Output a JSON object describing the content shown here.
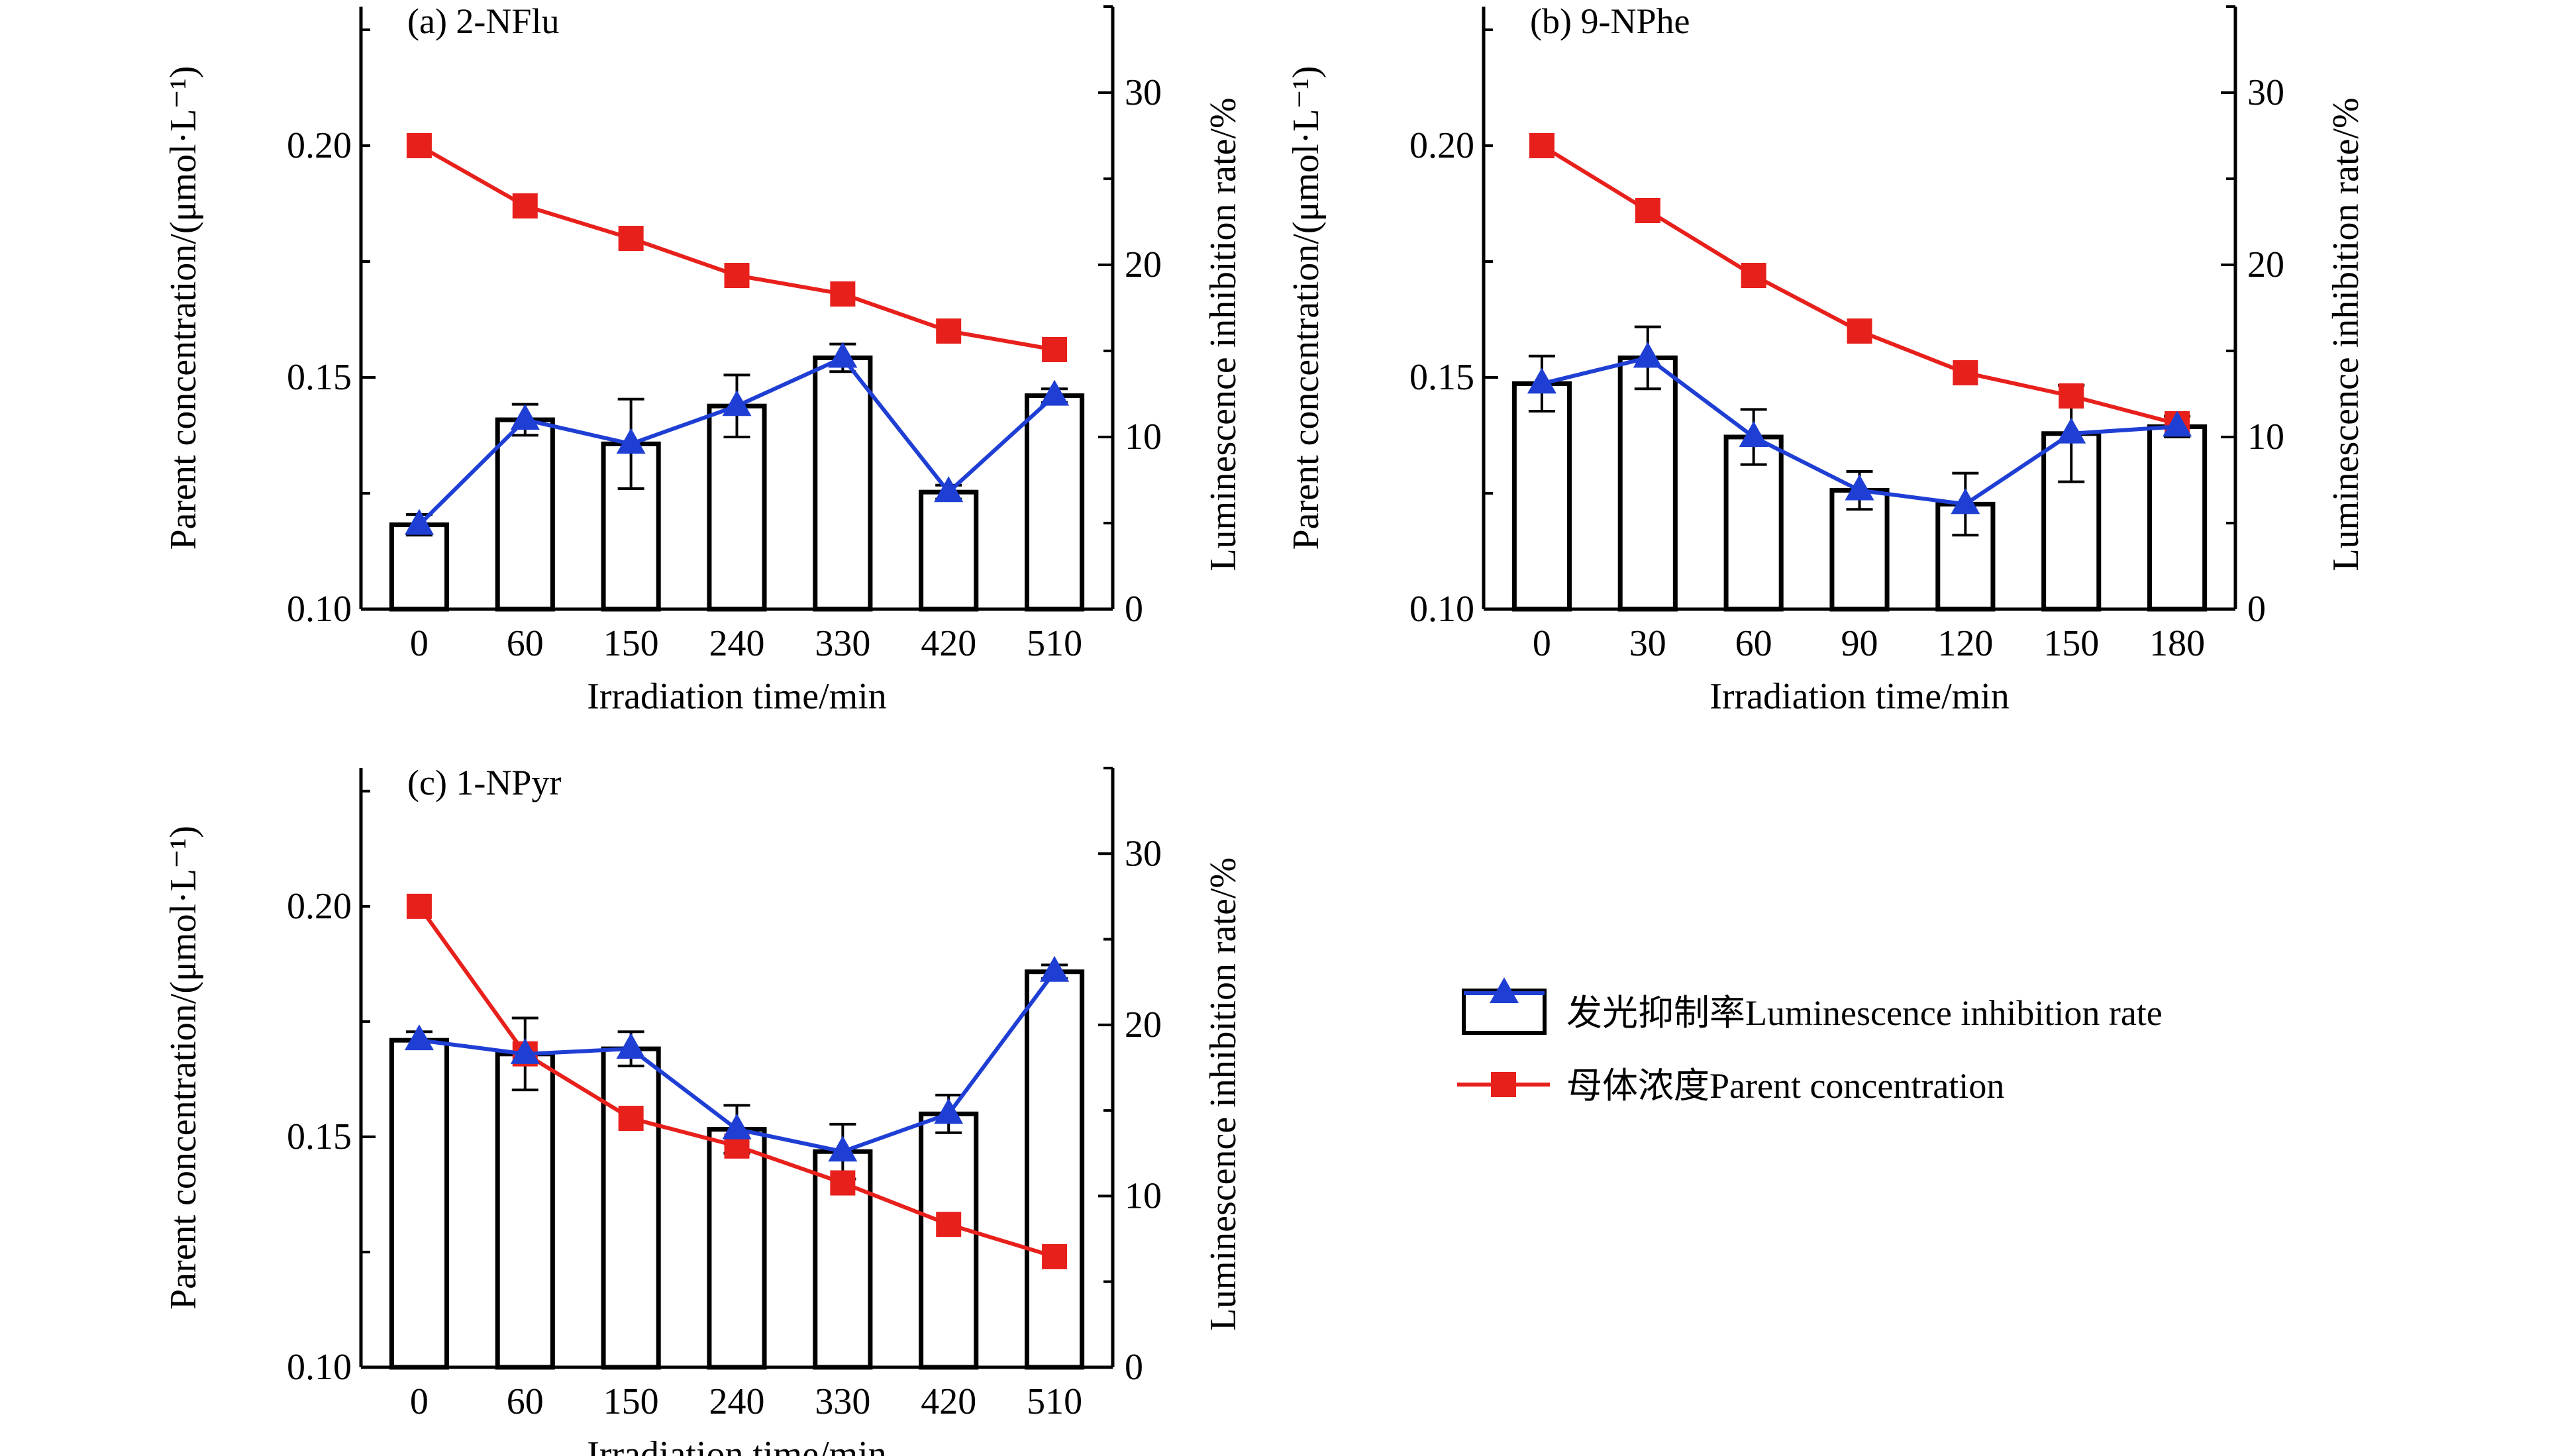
{
  "colors": {
    "inhibition": "#1f3fd4",
    "concentration": "#e8201c",
    "bar_fill": "#ffffff",
    "axis": "#000000"
  },
  "legend": {
    "inhibition_label": "发光抑制率Luminescence inhibition rate",
    "concentration_label": "母体浓度Parent concentration"
  },
  "chart_data": [
    {
      "type": "bar",
      "title": "(a) 2-NFlu",
      "xlabel": "Irradiation time/min",
      "ylabel_left": "Parent concentration/(μmol·L⁻¹)",
      "ylabel_right": "Luminescence inhibition rate/%",
      "categories": [
        "0",
        "60",
        "150",
        "240",
        "330",
        "420",
        "510"
      ],
      "ylim_left": [
        0.1,
        0.23
      ],
      "yticks_left": [
        "0.10",
        "0.15",
        "0.20"
      ],
      "ylim_right": [
        0,
        35
      ],
      "yticks_right": [
        "0",
        "10",
        "20",
        "30"
      ],
      "series": [
        {
          "name": "发光抑制率Luminescence inhibition rate",
          "axis": "right",
          "style": "bar+line",
          "values": [
            4.9,
            11.0,
            9.6,
            11.8,
            14.6,
            6.8,
            12.4
          ],
          "errors": [
            0.6,
            0.9,
            2.6,
            1.8,
            0.8,
            0.4,
            0.4
          ]
        },
        {
          "name": "母体浓度Parent concentration",
          "axis": "left",
          "style": "line",
          "values": [
            0.2,
            0.187,
            0.18,
            0.172,
            0.168,
            0.16,
            0.156
          ]
        }
      ]
    },
    {
      "type": "bar",
      "title": "(b) 9-NPhe",
      "xlabel": "Irradiation time/min",
      "ylabel_left": "Parent concentration/(μmol·L⁻¹)",
      "ylabel_right": "Luminescence inhibition rate/%",
      "categories": [
        "0",
        "30",
        "60",
        "90",
        "120",
        "150",
        "180"
      ],
      "ylim_left": [
        0.1,
        0.23
      ],
      "yticks_left": [
        "0.10",
        "0.15",
        "0.20"
      ],
      "ylim_right": [
        0,
        35
      ],
      "yticks_right": [
        "0",
        "10",
        "20",
        "30"
      ],
      "series": [
        {
          "name": "发光抑制率Luminescence inhibition rate",
          "axis": "right",
          "style": "bar+line",
          "values": [
            13.1,
            14.6,
            10.0,
            6.9,
            6.1,
            10.2,
            10.6
          ],
          "errors": [
            1.6,
            1.8,
            1.6,
            1.1,
            1.8,
            2.8,
            0.6
          ]
        },
        {
          "name": "母体浓度Parent concentration",
          "axis": "left",
          "style": "line",
          "values": [
            0.2,
            0.186,
            0.172,
            0.16,
            0.151,
            0.146,
            0.14
          ]
        }
      ]
    },
    {
      "type": "bar",
      "title": "(c) 1-NPyr",
      "xlabel": "Irradiation time/min",
      "ylabel_left": "Parent concentration/(μmol·L⁻¹)",
      "ylabel_right": "Luminescence inhibition rate/%",
      "categories": [
        "0",
        "60",
        "150",
        "240",
        "330",
        "420",
        "510"
      ],
      "ylim_left": [
        0.1,
        0.23
      ],
      "yticks_left": [
        "0.10",
        "0.15",
        "0.20"
      ],
      "ylim_right": [
        0,
        35
      ],
      "yticks_right": [
        "0",
        "10",
        "20",
        "30"
      ],
      "series": [
        {
          "name": "发光抑制率Luminescence inhibition rate",
          "axis": "right",
          "style": "bar+line",
          "values": [
            19.1,
            18.3,
            18.6,
            13.9,
            12.6,
            14.8,
            23.1
          ],
          "errors": [
            0.5,
            2.1,
            1.0,
            1.4,
            1.6,
            1.1,
            0.4
          ]
        },
        {
          "name": "母体浓度Parent concentration",
          "axis": "left",
          "style": "line",
          "values": [
            0.2,
            0.168,
            0.154,
            0.148,
            0.14,
            0.131,
            0.124
          ]
        }
      ]
    }
  ]
}
